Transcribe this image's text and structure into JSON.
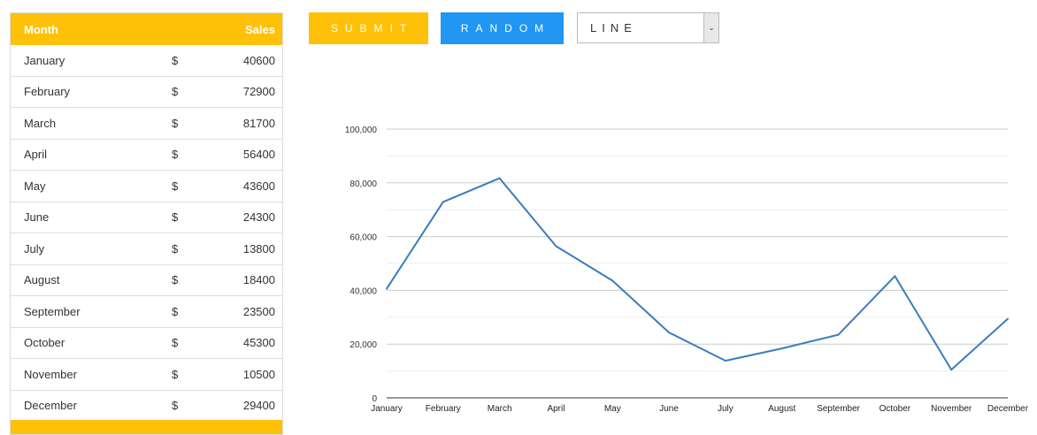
{
  "table": {
    "header_month": "Month",
    "header_sales": "Sales",
    "currency_symbol": "$",
    "rows": [
      {
        "month": "January",
        "value": "40600"
      },
      {
        "month": "February",
        "value": "72900"
      },
      {
        "month": "March",
        "value": "81700"
      },
      {
        "month": "April",
        "value": "56400"
      },
      {
        "month": "May",
        "value": "43600"
      },
      {
        "month": "June",
        "value": "24300"
      },
      {
        "month": "July",
        "value": "13800"
      },
      {
        "month": "August",
        "value": "18400"
      },
      {
        "month": "September",
        "value": "23500"
      },
      {
        "month": "October",
        "value": "45300"
      },
      {
        "month": "November",
        "value": "10500"
      },
      {
        "month": "December",
        "value": "29400"
      }
    ]
  },
  "controls": {
    "submit_label": "SUBMIT",
    "random_label": "RANDOM",
    "chart_type_selected": "LINE"
  },
  "colors": {
    "accent_yellow": "#ffc107",
    "accent_blue": "#2196f3",
    "line": "#3a7dbf"
  },
  "chart_data": {
    "type": "line",
    "categories": [
      "January",
      "February",
      "March",
      "April",
      "May",
      "June",
      "July",
      "August",
      "September",
      "October",
      "November",
      "December"
    ],
    "values": [
      40600,
      72900,
      81700,
      56400,
      43600,
      24300,
      13800,
      18400,
      23500,
      45300,
      10500,
      29400
    ],
    "ylim": [
      0,
      100000
    ],
    "yticks": [
      "0",
      "20,000",
      "40,000",
      "60,000",
      "80,000",
      "100,000"
    ],
    "grid": true,
    "title": "",
    "xlabel": "",
    "ylabel": ""
  }
}
